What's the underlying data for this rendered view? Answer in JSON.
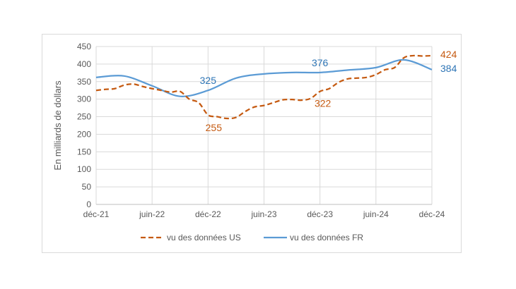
{
  "chart_data": {
    "type": "line",
    "ylabel": "En milliards de dollars",
    "xlabel": "",
    "ylim": [
      0,
      450
    ],
    "yticks": [
      0,
      50,
      100,
      150,
      200,
      250,
      300,
      350,
      400,
      450
    ],
    "xticks": [
      "déc-21",
      "juin-22",
      "déc-22",
      "juin-23",
      "déc-23",
      "juin-24",
      "déc-24"
    ],
    "grid": "horizontal",
    "legend_position": "bottom",
    "series": [
      {
        "name": "vu des données US",
        "color": "#C55A11",
        "style": "dashed",
        "x": [
          "déc-21",
          "janv-22",
          "févr-22",
          "mars-22",
          "avr-22",
          "mai-22",
          "juin-22",
          "juil-22",
          "août-22",
          "sept-22",
          "oct-22",
          "nov-22",
          "déc-22",
          "janv-23",
          "févr-23",
          "mars-23",
          "avr-23",
          "mai-23",
          "juin-23",
          "juil-23",
          "août-23",
          "sept-23",
          "oct-23",
          "nov-23",
          "déc-23",
          "janv-24",
          "févr-24",
          "mars-24",
          "avr-24",
          "mai-24",
          "juin-24",
          "juil-24",
          "août-24",
          "sept-24",
          "oct-24",
          "nov-24",
          "déc-24"
        ],
        "values": [
          325,
          328,
          330,
          340,
          343,
          336,
          330,
          325,
          320,
          322,
          300,
          290,
          255,
          250,
          245,
          248,
          265,
          278,
          282,
          290,
          298,
          299,
          297,
          302,
          322,
          330,
          348,
          358,
          360,
          362,
          370,
          384,
          390,
          418,
          424,
          423,
          424
        ],
        "labels": [
          {
            "x": "déc-22",
            "value": 255,
            "text": "255"
          },
          {
            "x": "déc-23",
            "value": 322,
            "text": "322"
          },
          {
            "x": "déc-24",
            "value": 424,
            "text": "424"
          }
        ]
      },
      {
        "name": "vu des données FR",
        "color": "#5B9BD5",
        "style": "solid",
        "x": [
          "déc-21",
          "mars-22",
          "juin-22",
          "sept-22",
          "déc-22",
          "mars-23",
          "juin-23",
          "sept-23",
          "déc-23",
          "mars-24",
          "juin-24",
          "sept-24",
          "déc-24"
        ],
        "values": [
          362,
          366,
          338,
          308,
          325,
          360,
          372,
          376,
          376,
          383,
          390,
          412,
          384
        ],
        "labels": [
          {
            "x": "déc-22",
            "value": 325,
            "text": "325"
          },
          {
            "x": "déc-23",
            "value": 376,
            "text": "376"
          },
          {
            "x": "déc-24",
            "value": 384,
            "text": "384"
          }
        ]
      }
    ]
  }
}
